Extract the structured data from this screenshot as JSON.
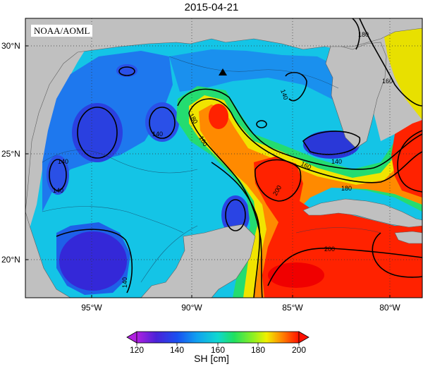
{
  "title": "2015-04-21",
  "credit": "NOAA/AOML",
  "colors": {
    "ocean_low": "#7a1fd6",
    "ocean_mid": "#12c0e6",
    "ocean_high": "#f22000",
    "land": "#c0c0c0"
  },
  "axes": {
    "lat_labels": [
      "30°N",
      "25°N",
      "20°N"
    ],
    "lon_labels": [
      "95°W",
      "90°W",
      "85°W",
      "80°W"
    ]
  },
  "contour_labels": [
    "140",
    "140",
    "140",
    "140",
    "140",
    "140",
    "160",
    "160",
    "160",
    "180",
    "180",
    "180",
    "200",
    "200"
  ],
  "colorbar": {
    "ticks": [
      "120",
      "140",
      "160",
      "180",
      "200"
    ],
    "title": "SH [cm]"
  },
  "chart_data": {
    "type": "heatmap",
    "title": "2015-04-21",
    "variable": "SH [cm]",
    "lat_range": [
      18,
      31
    ],
    "lon_range": [
      -99,
      -78
    ],
    "color_range": [
      120,
      200
    ],
    "contour_levels": [
      140,
      160,
      180,
      200
    ],
    "marker": {
      "shape": "triangle",
      "lat": 28.7,
      "lon": -88.5
    }
  }
}
